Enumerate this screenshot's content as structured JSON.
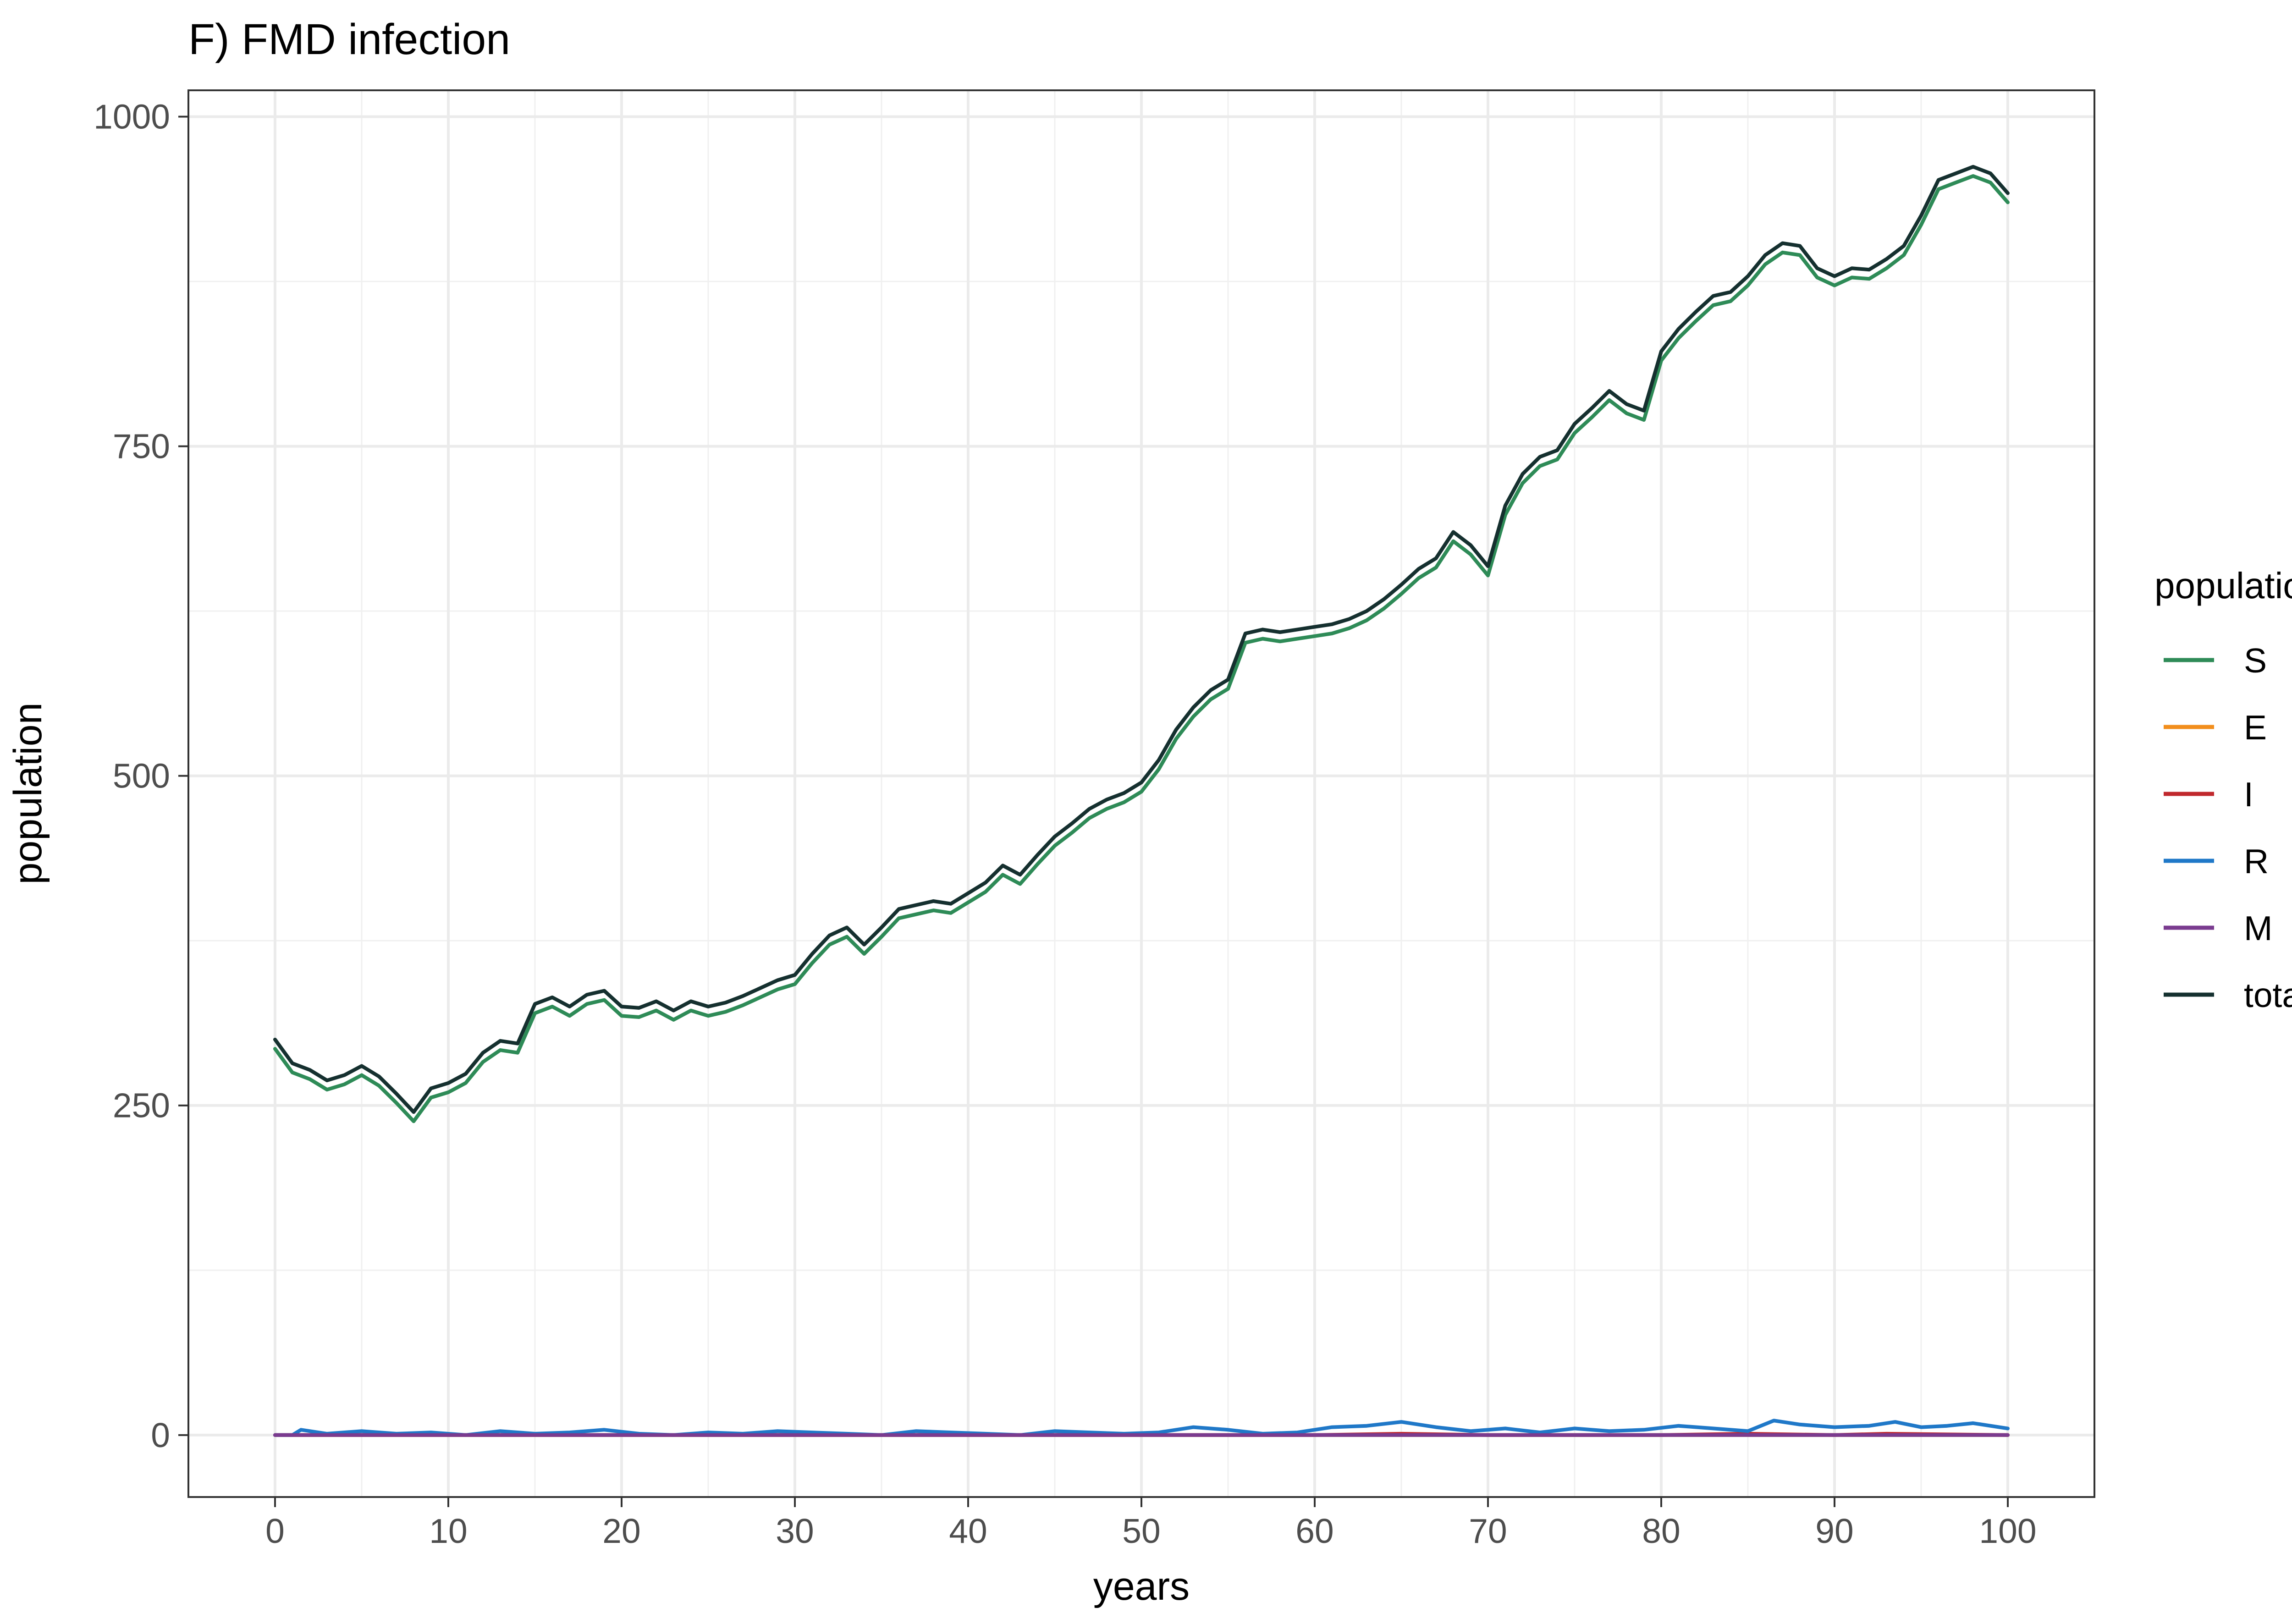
{
  "chart_data": {
    "type": "line",
    "title": "F) FMD infection",
    "xlabel": "years",
    "ylabel": "population",
    "xlim": [
      -5,
      105
    ],
    "ylim": [
      -47,
      1020
    ],
    "x_ticks": [
      0,
      10,
      20,
      30,
      40,
      50,
      60,
      70,
      80,
      90,
      100
    ],
    "x_tick_labels": [
      "0",
      "10",
      "20",
      "30",
      "40",
      "50",
      "60",
      "70",
      "80",
      "90",
      "100"
    ],
    "y_ticks": [
      0,
      250,
      500,
      750,
      1000
    ],
    "y_tick_labels": [
      "0",
      "250",
      "500",
      "750",
      "1000"
    ],
    "grid": true,
    "legend": {
      "title": "population",
      "position": "right"
    },
    "series": [
      {
        "name": "S",
        "color": "#2e8b57",
        "x": [
          0,
          1,
          2,
          3,
          4,
          5,
          6,
          7,
          8,
          9,
          10,
          11,
          12,
          13,
          14,
          15,
          16,
          17,
          18,
          19,
          20,
          21,
          22,
          23,
          24,
          25,
          26,
          27,
          28,
          29,
          30,
          31,
          32,
          33,
          34,
          35,
          36,
          37,
          38,
          39,
          40,
          41,
          42,
          43,
          44,
          45,
          46,
          47,
          48,
          49,
          50,
          51,
          52,
          53,
          54,
          55,
          56,
          57,
          58,
          59,
          60,
          61,
          62,
          63,
          64,
          65,
          66,
          67,
          68,
          69,
          70,
          71,
          72,
          73,
          74,
          75,
          76,
          77,
          78,
          79,
          80,
          81,
          82,
          83,
          84,
          85,
          86,
          87,
          88,
          89,
          90,
          91,
          92,
          93,
          94,
          95,
          96,
          97,
          98,
          99,
          100
        ],
        "y": [
          293,
          275,
          270,
          262,
          266,
          273,
          265,
          252,
          238,
          256,
          260,
          267,
          283,
          292,
          290,
          320,
          325,
          318,
          327,
          330,
          318,
          317,
          322,
          315,
          322,
          318,
          321,
          326,
          332,
          338,
          342,
          358,
          372,
          378,
          365,
          378,
          392,
          395,
          398,
          396,
          404,
          412,
          425,
          418,
          433,
          447,
          457,
          468,
          475,
          480,
          488,
          505,
          528,
          545,
          558,
          566,
          601,
          604,
          602,
          604,
          606,
          608,
          612,
          618,
          627,
          638,
          650,
          658,
          678,
          668,
          652,
          698,
          722,
          735,
          740,
          760,
          772,
          785,
          775,
          770,
          815,
          832,
          845,
          857,
          860,
          872,
          888,
          897,
          895,
          878,
          872,
          878,
          877,
          885,
          895,
          918,
          945,
          950,
          955,
          950,
          935
        ]
      },
      {
        "name": "E",
        "color": "#f28e1c",
        "x": [
          0,
          10,
          20,
          30,
          40,
          50,
          60,
          70,
          80,
          90,
          100
        ],
        "y": [
          0,
          0,
          0,
          0,
          0,
          0,
          0,
          0,
          0,
          0,
          0
        ]
      },
      {
        "name": "I",
        "color": "#c0282d",
        "x": [
          0,
          10,
          20,
          30,
          40,
          50,
          60,
          65,
          70,
          80,
          85,
          90,
          93,
          100
        ],
        "y": [
          0,
          0,
          0,
          0,
          0,
          0,
          0,
          1,
          0,
          0,
          1,
          0,
          1,
          0
        ]
      },
      {
        "name": "R",
        "color": "#1f78c8",
        "x": [
          0,
          1,
          1.5,
          3,
          5,
          7,
          9,
          11,
          13,
          15,
          17,
          19,
          21,
          23,
          25,
          27,
          29,
          31,
          33,
          35,
          37,
          39,
          41,
          43,
          45,
          47,
          49,
          51,
          53,
          55,
          57,
          59,
          61,
          63,
          65,
          67,
          69,
          71,
          73,
          75,
          77,
          79,
          81,
          83,
          85,
          86.5,
          88,
          90,
          92,
          93.5,
          95,
          96.5,
          98,
          100
        ],
        "y": [
          0,
          0,
          4,
          1,
          3,
          1,
          2,
          0,
          3,
          1,
          2,
          4,
          1,
          0,
          2,
          1,
          3,
          2,
          1,
          0,
          3,
          2,
          1,
          0,
          3,
          2,
          1,
          2,
          6,
          4,
          1,
          2,
          6,
          7,
          10,
          6,
          3,
          5,
          2,
          5,
          3,
          4,
          7,
          5,
          3,
          11,
          8,
          6,
          7,
          10,
          6,
          7,
          9,
          5
        ]
      },
      {
        "name": "M",
        "color": "#7a3b8f",
        "x": [
          0,
          10,
          20,
          30,
          40,
          50,
          60,
          70,
          80,
          90,
          100
        ],
        "y": [
          0,
          0,
          0,
          0,
          0,
          0,
          0,
          0,
          0,
          0,
          0
        ]
      },
      {
        "name": "total",
        "color": "#15302f",
        "x": [
          0,
          1,
          2,
          3,
          4,
          5,
          6,
          7,
          8,
          9,
          10,
          11,
          12,
          13,
          14,
          15,
          16,
          17,
          18,
          19,
          20,
          21,
          22,
          23,
          24,
          25,
          26,
          27,
          28,
          29,
          30,
          31,
          32,
          33,
          34,
          35,
          36,
          37,
          38,
          39,
          40,
          41,
          42,
          43,
          44,
          45,
          46,
          47,
          48,
          49,
          50,
          51,
          52,
          53,
          54,
          55,
          56,
          57,
          58,
          59,
          60,
          61,
          62,
          63,
          64,
          65,
          66,
          67,
          68,
          69,
          70,
          71,
          72,
          73,
          74,
          75,
          76,
          77,
          78,
          79,
          80,
          81,
          82,
          83,
          84,
          85,
          86,
          87,
          88,
          89,
          90,
          91,
          92,
          93,
          94,
          95,
          96,
          97,
          98,
          99,
          100
        ],
        "y": [
          300,
          282,
          277,
          269,
          273,
          280,
          272,
          259,
          245,
          263,
          267,
          274,
          290,
          299,
          297,
          327,
          332,
          325,
          334,
          337,
          325,
          324,
          329,
          322,
          329,
          325,
          328,
          333,
          339,
          345,
          349,
          365,
          379,
          385,
          372,
          385,
          399,
          402,
          405,
          403,
          411,
          419,
          432,
          425,
          440,
          454,
          464,
          475,
          482,
          487,
          495,
          512,
          535,
          552,
          565,
          573,
          608,
          611,
          609,
          611,
          613,
          615,
          619,
          625,
          634,
          645,
          657,
          665,
          685,
          675,
          659,
          705,
          729,
          742,
          747,
          767,
          779,
          792,
          782,
          777,
          822,
          839,
          852,
          864,
          867,
          879,
          895,
          904,
          902,
          885,
          879,
          885,
          884,
          892,
          902,
          925,
          952,
          957,
          962,
          957,
          942
        ]
      }
    ]
  }
}
